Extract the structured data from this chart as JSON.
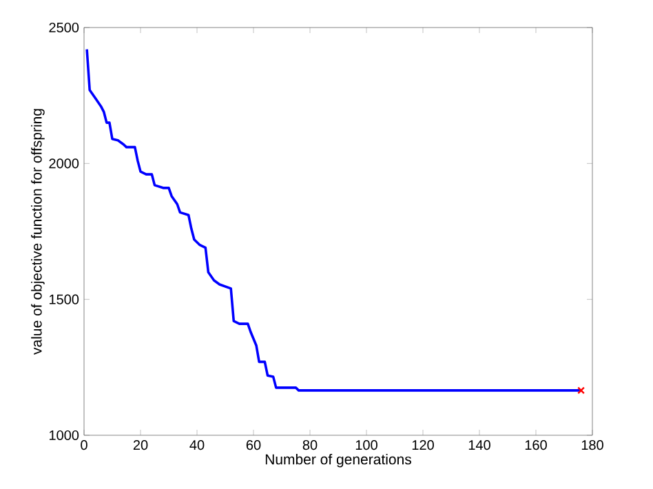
{
  "chart_data": {
    "type": "line",
    "xlabel": "Number of generations",
    "ylabel": "value of objective function for offspring",
    "xlim": [
      0,
      180
    ],
    "ylim": [
      1000,
      2500
    ],
    "xticks": [
      0,
      20,
      40,
      60,
      80,
      100,
      120,
      140,
      160,
      180
    ],
    "yticks": [
      1000,
      1500,
      2000,
      2500
    ],
    "grid": false,
    "series": [
      {
        "color": "#0000ff",
        "marker": "none",
        "line_style": "solid",
        "x": [
          1,
          2,
          4,
          6,
          7,
          8,
          9,
          10,
          12,
          14,
          15,
          18,
          19,
          20,
          22,
          24,
          25,
          28,
          30,
          31,
          33,
          34,
          37,
          38,
          39,
          41,
          43,
          44,
          46,
          48,
          52,
          53,
          55,
          58,
          59,
          61,
          62,
          64,
          65,
          67,
          68,
          75,
          76,
          176
        ],
        "values": [
          2420,
          2270,
          2240,
          2210,
          2190,
          2150,
          2150,
          2090,
          2085,
          2070,
          2060,
          2060,
          2010,
          1970,
          1960,
          1960,
          1920,
          1910,
          1910,
          1880,
          1850,
          1820,
          1810,
          1760,
          1720,
          1700,
          1690,
          1600,
          1570,
          1555,
          1540,
          1420,
          1410,
          1410,
          1380,
          1330,
          1270,
          1270,
          1220,
          1215,
          1175,
          1175,
          1165,
          1165
        ]
      },
      {
        "type": "scatter",
        "color": "#ff0000",
        "marker": "cross",
        "x": [
          176
        ],
        "values": [
          1165
        ]
      }
    ]
  }
}
